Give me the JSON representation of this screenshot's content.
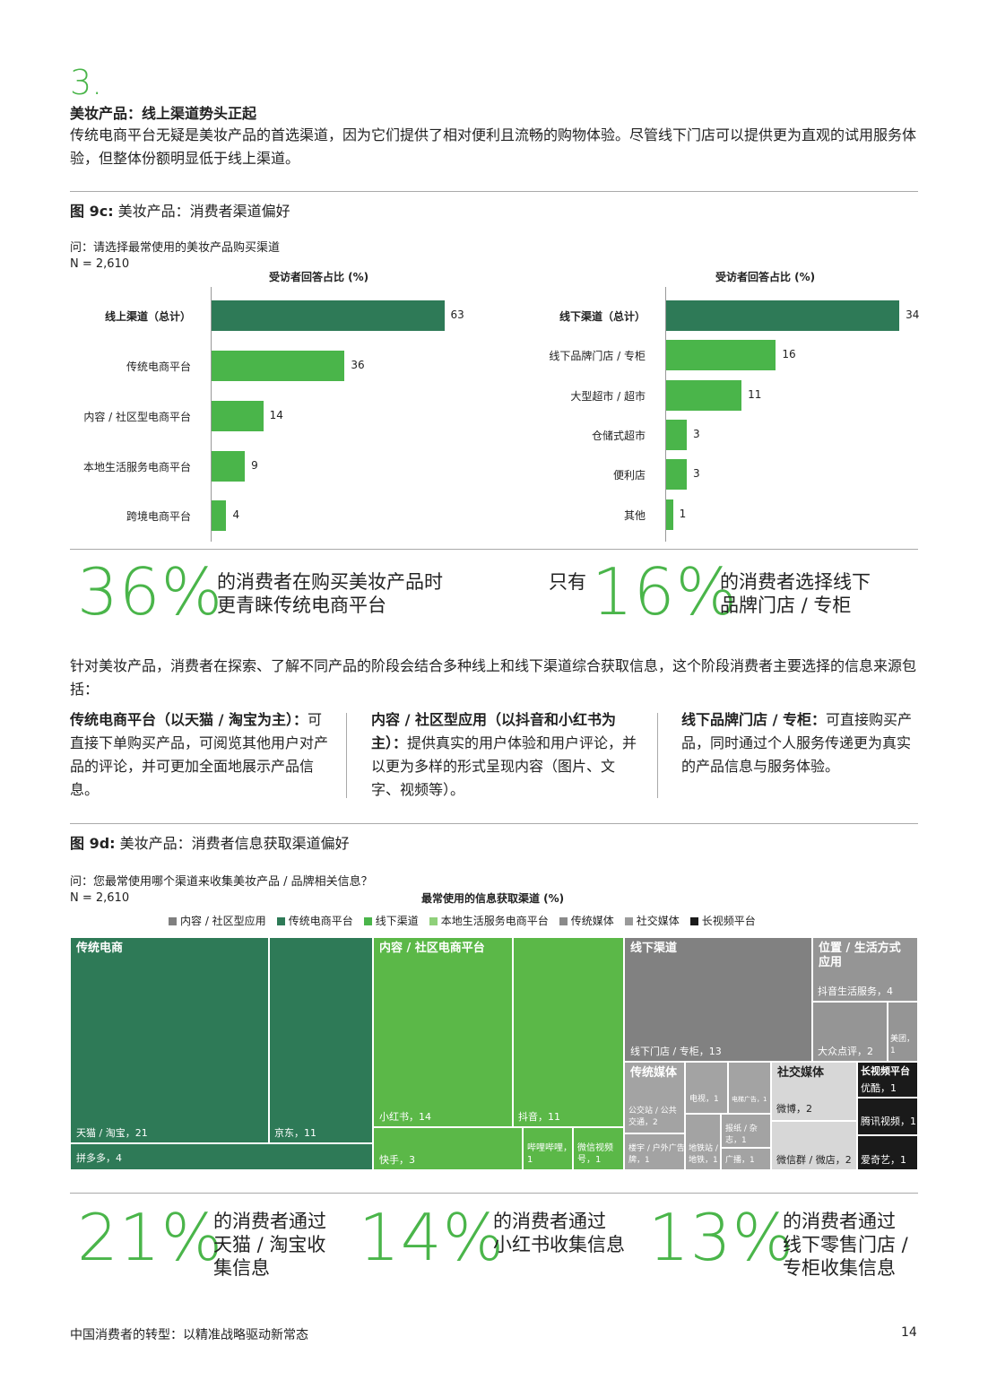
{
  "section": {
    "number": "3.",
    "title": "美妆产品：线上渠道势头正起",
    "intro": "传统电商平台无疑是美妆产品的首选渠道，因为它们提供了相对便利且流畅的购物体验。尽管线下门店可以提供更为直观的试用服务体验，但整体份额明显低于线上渠道。"
  },
  "fig9c": {
    "title_bold": "图 9c:",
    "title_rest": " 美妆产品：消费者渠道偏好",
    "question": "问：请选择最常使用的美妆产品购买渠道",
    "n": "N = 2,610",
    "axis_title_left": "受访者回答占比 (%)",
    "axis_title_right": "受访者回答占比 (%)"
  },
  "chart_data": [
    {
      "type": "bar",
      "orientation": "horizontal",
      "xlabel": "受访者回答占比 (%)",
      "categories": [
        "线上渠道（总计）",
        "传统电商平台",
        "内容 / 社区型电商平台",
        "本地生活服务电商平台",
        "跨境电商平台"
      ],
      "values": [
        63,
        36,
        14,
        9,
        4
      ],
      "colors": [
        "#2e7a57",
        "#4ab54a",
        "#4ab54a",
        "#4ab54a",
        "#4ab54a"
      ]
    },
    {
      "type": "bar",
      "orientation": "horizontal",
      "xlabel": "受访者回答占比 (%)",
      "categories": [
        "线下渠道（总计）",
        "线下品牌门店 / 专柜",
        "大型超市 / 超市",
        "仓储式超市",
        "便利店",
        "其他"
      ],
      "values": [
        34,
        16,
        11,
        3,
        3,
        1
      ],
      "colors": [
        "#2e7a57",
        "#4ab54a",
        "#4ab54a",
        "#4ab54a",
        "#4ab54a",
        "#4ab54a"
      ]
    }
  ],
  "stats1": {
    "left_num": "36%",
    "left_text1": "的消费者在购买美妆产品时",
    "left_text2": "更青睐传统电商平台",
    "right_prefix": "只有",
    "right_num": "16%",
    "right_text1": "的消费者选择线下",
    "right_text2": "品牌门店 / 专柜"
  },
  "info": {
    "para": "针对美妆产品，消费者在探索、了解不同产品的阶段会结合多种线上和线下渠道综合获取信息，这个阶段消费者主要选择的信息来源包括：",
    "col1_bold": "传统电商平台（以天猫 / 淘宝为主）：",
    "col1_text": "可直接下单购买产品，可阅览其他用户对产品的评论，并可更加全面地展示产品信息。",
    "col2_bold": "内容 / 社区型应用（以抖音和小红书为主）：",
    "col2_text": "提供真实的用户体验和用户评论，并以更为多样的形式呈现内容（图片、文字、视频等）。",
    "col3_bold": "线下品牌门店 / 专柜：",
    "col3_text": "可直接购买产品，同时通过个人服务传递更为真实的产品信息与服务体验。"
  },
  "fig9d": {
    "title_bold": "图 9d:",
    "title_rest": " 美妆产品：消费者信息获取渠道偏好",
    "question": "问：您最常使用哪个渠道来收集美妆产品 / 品牌相关信息？",
    "n": "N = 2,610",
    "chart_title": "最常使用的信息获取渠道 (%)",
    "legend": [
      {
        "label": "内容 / 社区型应用",
        "color": "#7f7f7f"
      },
      {
        "label": "传统电商平台",
        "color": "#2e7a57"
      },
      {
        "label": "线下渠道",
        "color": "#4ab54a"
      },
      {
        "label": "本地生活服务电商平台",
        "color": "#8fd07a"
      },
      {
        "label": "传统媒体",
        "color": "#8a8a8a"
      },
      {
        "label": "社交媒体",
        "color": "#9a9a9a"
      },
      {
        "label": "长视频平台",
        "color": "#1a1a1a"
      }
    ],
    "treemap": {
      "groups": {
        "g1": "传统电商",
        "g2": "内容 / 社区电商平台",
        "g3": "线下渠道",
        "g4": "位置 / 生活方式应用",
        "g5": "传统媒体",
        "g6": "社交媒体",
        "g7": "长视频平台"
      },
      "cells": {
        "tmall": "天猫 / 淘宝，21",
        "jd": "京东，11",
        "pdd": "拼多多，4",
        "xhs": "小红书，14",
        "douyin": "抖音，11",
        "kuaishou": "快手，3",
        "bili": "哔哩哔哩，1",
        "wxvideo": "微信视频号，1",
        "offline": "线下门店 / 专柜，13",
        "dylife": "抖音生活服务，4",
        "dianping": "大众点评，2",
        "meituan": "美团，1",
        "bus": "公交站 / 公共交通，2",
        "tv": "电视，1",
        "elevator": "电梯广告，1",
        "building": "楼宇 / 户外广告牌，1",
        "metro": "地铁站 / 地铁，1",
        "mag": "报纸 / 杂志，1",
        "radio": "广播，1",
        "weibo": "微博，2",
        "wechat": "微信群 / 微店，2",
        "youku": "优酷，1",
        "tencent": "腾讯视频，1",
        "iqiyi": "爱奇艺，1"
      }
    }
  },
  "stats2": [
    {
      "num": "21%",
      "line1": "的消费者通过",
      "line2": "天猫 / 淘宝收",
      "line3": "集信息"
    },
    {
      "num": "14%",
      "line1": "的消费者通过",
      "line2": "小红书收集信息",
      "line3": ""
    },
    {
      "num": "13%",
      "line1": "的消费者通过",
      "line2": "线下零售门店 /",
      "line3": "专柜收集信息"
    }
  ],
  "footer": {
    "text": "中国消费者的转型：以精准战略驱动新常态",
    "page": "14"
  }
}
